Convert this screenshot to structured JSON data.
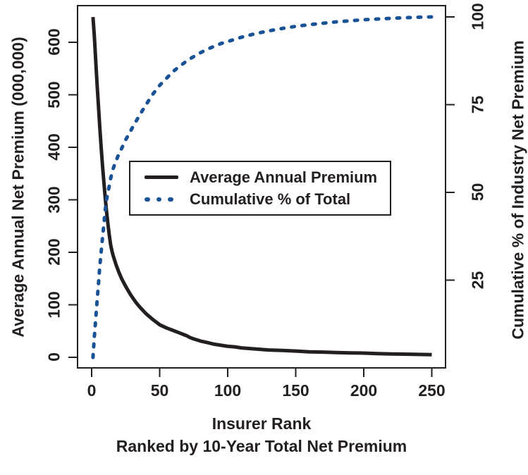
{
  "figure": {
    "background": "#ffffff",
    "line_black": "#231f20",
    "line_blue": "#1a5296",
    "axis_color": "#231f20"
  },
  "chart_data": {
    "type": "line",
    "title": "",
    "x_axis": {
      "label": "Insurer Rank",
      "sublabel": "Ranked by 10-Year Total Net Premium",
      "ticks": [
        0,
        50,
        100,
        150,
        200,
        250
      ],
      "range": [
        0,
        250
      ]
    },
    "y_left_axis": {
      "label": "Average Annual Net Premium (000,000)",
      "ticks": [
        0,
        100,
        200,
        300,
        400,
        500,
        600
      ],
      "range": [
        0,
        600
      ]
    },
    "y_right_axis": {
      "label": "Cumulative % of Industry Net Premium",
      "ticks": [
        25,
        50,
        75,
        100
      ],
      "range": [
        0,
        100
      ]
    },
    "legend": {
      "position": "center-left",
      "entries": [
        {
          "label": "Average Annual Premium",
          "style": "solid",
          "color": "#231f20"
        },
        {
          "label": "Cumulative % of Total",
          "style": "dotted",
          "color": "#1a5296"
        }
      ]
    },
    "grid": false,
    "series": [
      {
        "name": "Average Annual Premium",
        "axis": "left",
        "style": "solid",
        "color": "#231f20",
        "points": [
          [
            1,
            648
          ],
          [
            2,
            610
          ],
          [
            3,
            565
          ],
          [
            4,
            520
          ],
          [
            5,
            478
          ],
          [
            6,
            437
          ],
          [
            7,
            400
          ],
          [
            8,
            365
          ],
          [
            9,
            333
          ],
          [
            10,
            303
          ],
          [
            11,
            277
          ],
          [
            12,
            253
          ],
          [
            13,
            232
          ],
          [
            14,
            214
          ],
          [
            15,
            202
          ],
          [
            16,
            192
          ],
          [
            17,
            184
          ],
          [
            18,
            176
          ],
          [
            19,
            169
          ],
          [
            20,
            162
          ],
          [
            22,
            150
          ],
          [
            25,
            135
          ],
          [
            28,
            122
          ],
          [
            30,
            114
          ],
          [
            33,
            103
          ],
          [
            36,
            94
          ],
          [
            40,
            83
          ],
          [
            45,
            72
          ],
          [
            50,
            62
          ],
          [
            55,
            56
          ],
          [
            60,
            51
          ],
          [
            65,
            46
          ],
          [
            68,
            43
          ],
          [
            70,
            41
          ],
          [
            72,
            38
          ],
          [
            75,
            35
          ],
          [
            80,
            31
          ],
          [
            85,
            28
          ],
          [
            90,
            25
          ],
          [
            95,
            23
          ],
          [
            100,
            21
          ],
          [
            105,
            20
          ],
          [
            110,
            18
          ],
          [
            120,
            16
          ],
          [
            130,
            14
          ],
          [
            140,
            13
          ],
          [
            150,
            12
          ],
          [
            160,
            10.5
          ],
          [
            170,
            10
          ],
          [
            180,
            9
          ],
          [
            190,
            8.5
          ],
          [
            200,
            8
          ],
          [
            210,
            7
          ],
          [
            220,
            6.5
          ],
          [
            230,
            6
          ],
          [
            240,
            5.5
          ],
          [
            250,
            5
          ]
        ]
      },
      {
        "name": "Cumulative % of Total",
        "axis": "right",
        "style": "dotted",
        "color": "#1a5296",
        "points": [
          [
            1,
            3
          ],
          [
            2,
            9
          ],
          [
            3,
            14
          ],
          [
            4,
            19
          ],
          [
            5,
            24
          ],
          [
            6,
            29
          ],
          [
            7,
            33
          ],
          [
            8,
            37
          ],
          [
            9,
            41
          ],
          [
            10,
            45
          ],
          [
            11,
            48
          ],
          [
            12,
            50
          ],
          [
            13,
            52
          ],
          [
            14,
            54
          ],
          [
            15,
            55.5
          ],
          [
            16,
            57
          ],
          [
            18,
            59
          ],
          [
            20,
            61
          ],
          [
            22,
            62.5
          ],
          [
            25,
            65
          ],
          [
            28,
            67
          ],
          [
            30,
            68.5
          ],
          [
            33,
            70.5
          ],
          [
            36,
            72.5
          ],
          [
            40,
            75
          ],
          [
            45,
            78
          ],
          [
            50,
            80.5
          ],
          [
            55,
            82.5
          ],
          [
            60,
            84.5
          ],
          [
            65,
            86
          ],
          [
            70,
            87.5
          ],
          [
            75,
            88.7
          ],
          [
            80,
            89.8
          ],
          [
            85,
            90.8
          ],
          [
            90,
            91.6
          ],
          [
            95,
            92.4
          ],
          [
            100,
            93
          ],
          [
            110,
            94.2
          ],
          [
            120,
            95.2
          ],
          [
            130,
            96
          ],
          [
            140,
            96.7
          ],
          [
            150,
            97.3
          ],
          [
            160,
            97.8
          ],
          [
            170,
            98.2
          ],
          [
            180,
            98.6
          ],
          [
            190,
            98.9
          ],
          [
            200,
            99.2
          ],
          [
            210,
            99.4
          ],
          [
            220,
            99.6
          ],
          [
            230,
            99.75
          ],
          [
            240,
            99.9
          ],
          [
            250,
            100
          ]
        ]
      }
    ]
  }
}
